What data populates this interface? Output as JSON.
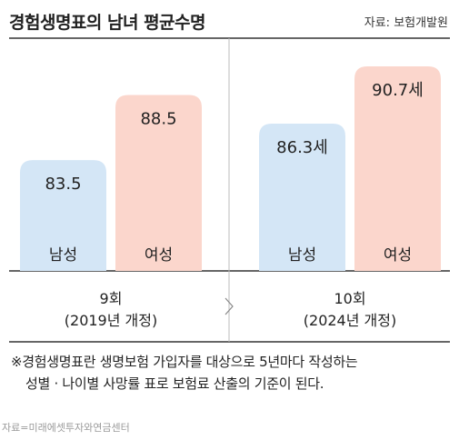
{
  "title": "경험생명표의 남녀 평균수명",
  "source_top": "자료: 보험개발원",
  "note": {
    "line1": "※경험생명표란 생명보험 가입자를 대상으로 5년마다 작성하는",
    "line2": "성별 · 나이별 사망률 표로 보험료 산출의 기준이 된다."
  },
  "source_bottom": "자료=미래에셋투자와연금센터",
  "colors": {
    "male": "#d4e6f6",
    "female": "#fbd6cc"
  },
  "chart_data": {
    "type": "bar",
    "title": "경험생명표의 남녀 평균수명",
    "categories": [
      "9회\n(2019년 개정)",
      "10회\n(2024년 개정)"
    ],
    "groups": [
      {
        "label_line1": "9회",
        "label_line2": "(2019년 개정)"
      },
      {
        "label_line1": "10회",
        "label_line2": "(2024년 개정)"
      }
    ],
    "series": [
      {
        "name": "남성",
        "values": [
          83.5,
          86.3
        ],
        "labels": [
          "83.5",
          "86.3세"
        ]
      },
      {
        "name": "여성",
        "values": [
          88.5,
          90.7
        ],
        "labels": [
          "88.5",
          "90.7세"
        ]
      }
    ],
    "ylim": [
      75,
      93
    ],
    "xlabel": "",
    "ylabel": "",
    "grid": false,
    "legend": "none"
  }
}
